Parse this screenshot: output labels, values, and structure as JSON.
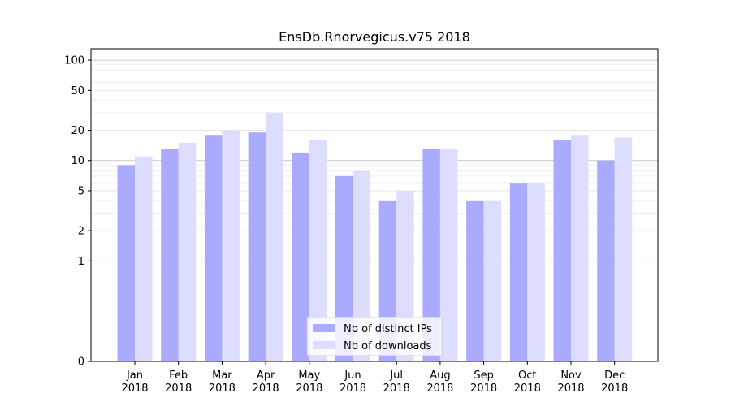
{
  "chart_data": {
    "type": "bar",
    "title": "EnsDb.Rnorvegicus.v75 2018",
    "xlabel": "",
    "ylabel": "",
    "yscale": "symlog",
    "ylim": [
      0,
      130
    ],
    "categories": [
      {
        "month": "Jan",
        "year": "2018"
      },
      {
        "month": "Feb",
        "year": "2018"
      },
      {
        "month": "Mar",
        "year": "2018"
      },
      {
        "month": "Apr",
        "year": "2018"
      },
      {
        "month": "May",
        "year": "2018"
      },
      {
        "month": "Jun",
        "year": "2018"
      },
      {
        "month": "Jul",
        "year": "2018"
      },
      {
        "month": "Aug",
        "year": "2018"
      },
      {
        "month": "Sep",
        "year": "2018"
      },
      {
        "month": "Oct",
        "year": "2018"
      },
      {
        "month": "Nov",
        "year": "2018"
      },
      {
        "month": "Dec",
        "year": "2018"
      }
    ],
    "yticks": [
      0,
      1,
      2,
      5,
      10,
      20,
      50,
      100
    ],
    "series": [
      {
        "name": "Nb of distinct IPs",
        "color": "#aaaaff",
        "values": [
          9,
          13,
          18,
          19,
          12,
          7,
          4,
          13,
          4,
          6,
          16,
          10
        ]
      },
      {
        "name": "Nb of downloads",
        "color": "#ddddff",
        "values": [
          11,
          15,
          20,
          30,
          16,
          8,
          5,
          13,
          4,
          6,
          18,
          17
        ]
      }
    ],
    "legend_position": "bottom-center",
    "grid": true
  }
}
